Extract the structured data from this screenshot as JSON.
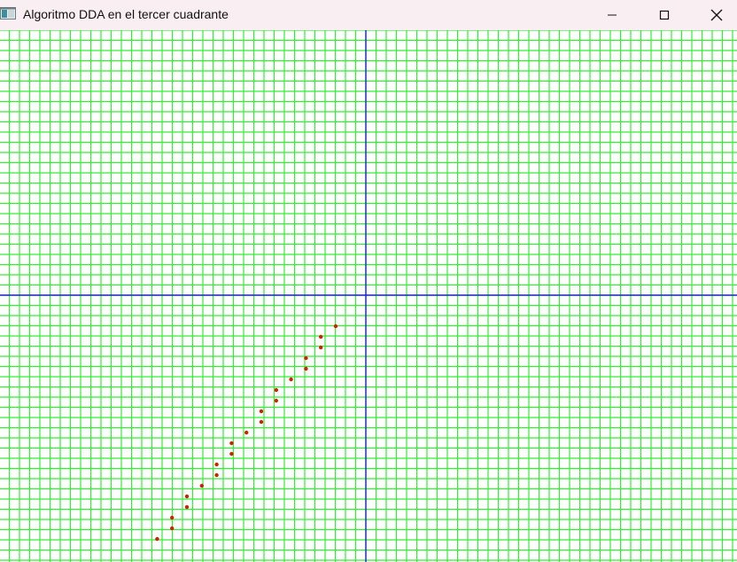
{
  "window": {
    "title": "Algoritmo DDA en el tercer cuadrante",
    "icons": {
      "app": "app-window-icon",
      "minimize": "minimize-icon",
      "maximize": "maximize-icon",
      "close": "close-icon"
    }
  },
  "colors": {
    "titlebar_bg": "#f9eff2",
    "grid": "#33ee33",
    "axes": "#2222cc",
    "points": "#cc2200",
    "canvas_bg": "#ffffff"
  },
  "chart_data": {
    "type": "scatter",
    "grid": true,
    "xlim": [
      -24,
      24
    ],
    "ylim": [
      -25,
      24
    ],
    "points": [
      {
        "x": -14,
        "y": -23
      },
      {
        "x": -13,
        "y": -22
      },
      {
        "x": -13,
        "y": -21
      },
      {
        "x": -12,
        "y": -20
      },
      {
        "x": -12,
        "y": -19
      },
      {
        "x": -11,
        "y": -18
      },
      {
        "x": -10,
        "y": -17
      },
      {
        "x": -10,
        "y": -16
      },
      {
        "x": -9,
        "y": -15
      },
      {
        "x": -9,
        "y": -14
      },
      {
        "x": -8,
        "y": -13
      },
      {
        "x": -7,
        "y": -12
      },
      {
        "x": -7,
        "y": -11
      },
      {
        "x": -6,
        "y": -10
      },
      {
        "x": -6,
        "y": -9
      },
      {
        "x": -5,
        "y": -8
      },
      {
        "x": -4,
        "y": -7
      },
      {
        "x": -4,
        "y": -6
      },
      {
        "x": -3,
        "y": -5
      },
      {
        "x": -3,
        "y": -4
      },
      {
        "x": -2,
        "y": -3
      }
    ]
  }
}
